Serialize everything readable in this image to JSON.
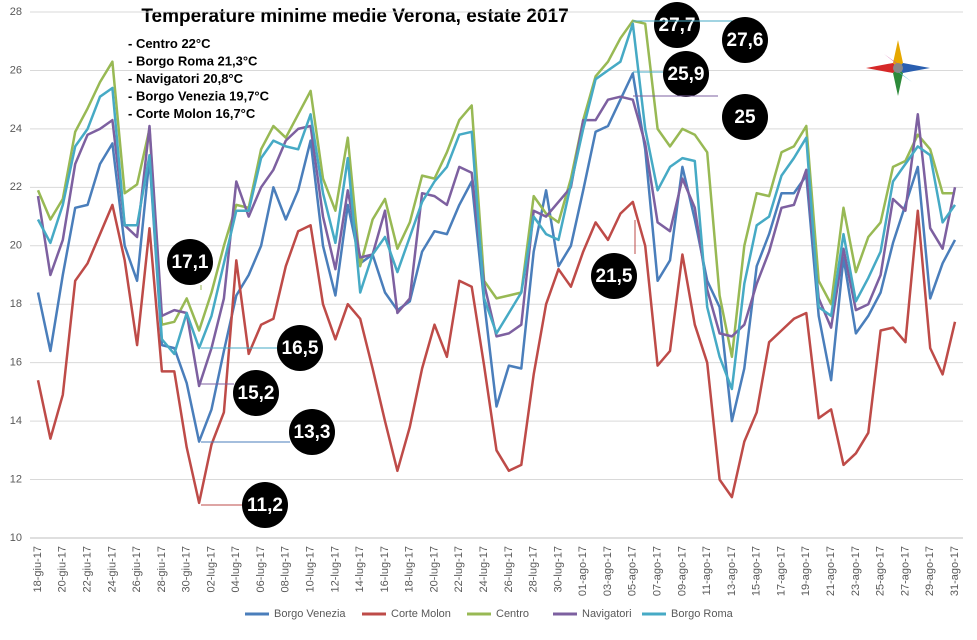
{
  "chart_data": {
    "type": "line",
    "title": "Temperature minime medie Verona, estate 2017",
    "notes": [
      "- Centro 22°C",
      "- Borgo Roma 21,3°C",
      "- Navigatori 20,8°C",
      "- Borgo Venezia 19,7°C",
      "- Corte Molon 16,7°C"
    ],
    "annotations": [
      "27,7",
      "27,6",
      "25,9",
      "25",
      "21,5",
      "17,1",
      "16,5",
      "15,2",
      "13,3",
      "11,2"
    ],
    "categories": [
      "18-giu-17",
      null,
      "20-giu-17",
      null,
      "22-giu-17",
      null,
      "24-giu-17",
      null,
      "26-giu-17",
      null,
      "28-giu-17",
      null,
      "30-giu-17",
      null,
      "02-lug-17",
      null,
      "04-lug-17",
      null,
      "06-lug-17",
      null,
      "08-lug-17",
      null,
      "10-lug-17",
      null,
      "12-lug-17",
      null,
      "14-lug-17",
      null,
      "16-lug-17",
      null,
      "18-lug-17",
      null,
      "20-lug-17",
      null,
      "22-lug-17",
      null,
      "24-lug-17",
      null,
      "26-lug-17",
      null,
      "28-lug-17",
      null,
      "30-lug-17",
      null,
      "01-ago-17",
      null,
      "03-ago-17",
      null,
      "05-ago-17",
      null,
      "07-ago-17",
      null,
      "09-ago-17",
      null,
      "11-ago-17",
      null,
      "13-ago-17",
      null,
      "15-ago-17",
      null,
      "17-ago-17",
      null,
      "19-ago-17",
      null,
      "21-ago-17",
      null,
      "23-ago-17",
      null,
      "25-ago-17",
      null,
      "27-ago-17",
      null,
      "29-ago-17",
      null,
      "31-ago-17"
    ],
    "series": [
      {
        "name": "Borgo Venezia",
        "color": "#4a7ebb",
        "values": [
          18.4,
          16.4,
          19.0,
          21.3,
          21.4,
          22.8,
          23.5,
          20.0,
          18.8,
          23.0,
          16.6,
          16.5,
          15.3,
          13.3,
          14.4,
          16.4,
          18.3,
          19.0,
          20.0,
          22.0,
          20.9,
          21.9,
          23.6,
          20.0,
          18.3,
          21.4,
          19.4,
          19.7,
          18.4,
          17.8,
          18.1,
          19.8,
          20.5,
          20.4,
          21.4,
          22.2,
          18.1,
          14.5,
          15.9,
          15.8,
          19.8,
          21.9,
          19.3,
          20.0,
          21.9,
          23.9,
          24.1,
          25.0,
          25.9,
          23.3,
          18.8,
          19.5,
          22.7,
          20.9,
          18.8,
          17.9,
          14.0,
          15.8,
          19.3,
          20.4,
          21.8,
          21.8,
          22.4,
          17.6,
          15.4,
          19.6,
          17.0,
          17.6,
          18.4,
          20.1,
          21.4,
          22.7,
          18.2,
          19.4,
          20.2
        ]
      },
      {
        "name": "Corte Molon",
        "color": "#be4b48",
        "values": [
          15.4,
          13.4,
          14.9,
          18.8,
          19.4,
          20.4,
          21.4,
          19.5,
          16.6,
          20.6,
          15.7,
          15.7,
          13.1,
          11.2,
          13.2,
          14.3,
          19.5,
          16.3,
          17.3,
          17.5,
          19.3,
          20.5,
          20.7,
          18.0,
          16.8,
          18.0,
          17.5,
          15.8,
          14.0,
          12.3,
          13.8,
          15.8,
          17.3,
          16.2,
          18.8,
          18.6,
          15.9,
          13.0,
          12.3,
          12.5,
          15.6,
          18.0,
          19.2,
          18.6,
          19.8,
          20.8,
          20.2,
          21.1,
          21.5,
          20.0,
          15.9,
          16.4,
          19.7,
          17.3,
          16.0,
          12.0,
          11.4,
          13.3,
          14.3,
          16.7,
          17.1,
          17.5,
          17.7,
          14.1,
          14.4,
          12.5,
          12.9,
          13.6,
          17.1,
          17.2,
          16.7,
          21.2,
          16.5,
          15.6,
          17.4
        ]
      },
      {
        "name": "Centro",
        "color": "#98b954",
        "values": [
          21.9,
          20.9,
          21.6,
          23.9,
          24.7,
          25.6,
          26.3,
          21.8,
          22.1,
          24.0,
          17.3,
          17.4,
          18.2,
          17.1,
          18.4,
          20.0,
          21.4,
          21.3,
          23.3,
          24.1,
          23.7,
          24.5,
          25.3,
          22.3,
          21.2,
          23.7,
          19.3,
          20.9,
          21.6,
          19.9,
          20.8,
          22.4,
          22.3,
          23.2,
          24.3,
          24.8,
          18.8,
          18.2,
          18.3,
          18.4,
          21.7,
          21.1,
          20.8,
          22.3,
          24.3,
          25.8,
          26.3,
          27.1,
          27.7,
          27.6,
          24.0,
          23.4,
          24.0,
          23.8,
          23.2,
          18.3,
          16.2,
          20.0,
          21.8,
          21.7,
          23.2,
          23.4,
          24.1,
          18.8,
          18.0,
          21.3,
          19.1,
          20.3,
          20.8,
          22.7,
          22.9,
          23.8,
          23.3,
          21.8,
          21.8
        ]
      },
      {
        "name": "Navigatori",
        "color": "#7d60a0",
        "values": [
          21.7,
          19.0,
          20.2,
          22.8,
          23.8,
          24.0,
          24.3,
          20.7,
          20.3,
          24.1,
          17.6,
          17.8,
          17.7,
          15.2,
          16.5,
          18.2,
          22.2,
          21.0,
          22.0,
          22.6,
          23.6,
          24.0,
          24.1,
          21.0,
          19.2,
          21.9,
          19.6,
          19.7,
          21.2,
          17.7,
          18.2,
          21.8,
          21.7,
          21.4,
          22.7,
          22.5,
          18.7,
          16.9,
          17.0,
          17.3,
          21.2,
          21.0,
          21.5,
          22.0,
          24.3,
          24.3,
          25.0,
          25.1,
          25.0,
          23.5,
          20.8,
          20.5,
          22.3,
          21.3,
          18.5,
          17.0,
          16.9,
          17.3,
          18.7,
          19.8,
          21.3,
          21.4,
          22.6,
          18.2,
          17.2,
          19.9,
          17.8,
          18.0,
          19.0,
          21.6,
          21.2,
          24.5,
          20.6,
          19.9,
          22.0
        ]
      },
      {
        "name": "Borgo Roma",
        "color": "#46aac5",
        "values": [
          20.9,
          20.1,
          21.4,
          23.4,
          24.0,
          25.1,
          25.4,
          20.7,
          20.7,
          23.1,
          16.8,
          16.3,
          17.7,
          16.5,
          17.6,
          19.4,
          21.2,
          21.2,
          23.0,
          23.6,
          23.4,
          23.3,
          24.5,
          21.8,
          20.1,
          23.0,
          18.4,
          19.7,
          20.3,
          19.1,
          20.3,
          21.5,
          22.2,
          22.7,
          23.8,
          23.9,
          18.2,
          17.0,
          17.7,
          18.4,
          21.0,
          20.4,
          20.2,
          22.1,
          24.0,
          25.7,
          26.0,
          26.3,
          27.6,
          24.0,
          21.9,
          22.7,
          23.0,
          22.9,
          17.9,
          16.2,
          15.1,
          18.7,
          20.7,
          21.0,
          22.4,
          23.0,
          23.7,
          17.9,
          17.6,
          20.4,
          18.1,
          18.9,
          19.8,
          22.2,
          22.8,
          23.4,
          23.1,
          20.8,
          21.4
        ]
      }
    ],
    "ylim": [
      10,
      28
    ],
    "yticks": [
      10,
      12,
      14,
      16,
      18,
      20,
      22,
      24,
      26,
      28
    ],
    "grid": true,
    "legend": "bottom"
  }
}
